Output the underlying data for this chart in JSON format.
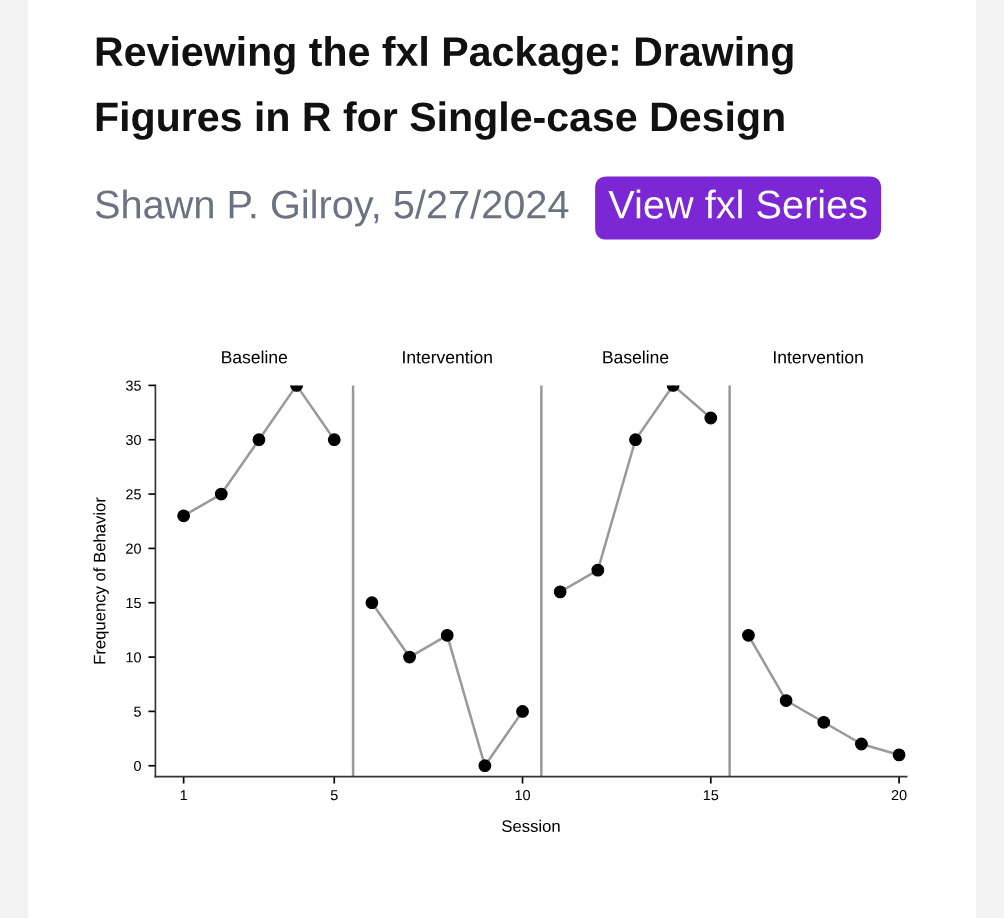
{
  "chart_data": {
    "type": "line",
    "title": "Reviewing the fxl Package: Drawing Figures in R for Single-case Design",
    "subtitle": "Shawn P. Gilroy, 5/27/2024",
    "xlabel": "Session",
    "ylabel": "Frequency of Behavior",
    "annotations": [
      "View fxl Series",
      "Baseline",
      "Intervention",
      "Baseline",
      "Intervention"
    ],
    "series": [
      {
        "color": "#000000",
        "x": [
          1,
          2,
          3,
          4,
          5
        ],
        "values": [
          23,
          25,
          30,
          35,
          30
        ]
      },
      {
        "color": "#000000",
        "x": [
          6,
          7,
          8,
          9,
          10
        ],
        "values": [
          15,
          10,
          12,
          0,
          5
        ]
      },
      {
        "color": "#000000",
        "x": [
          11,
          12,
          13,
          14,
          15
        ],
        "values": [
          16,
          18,
          30,
          35,
          32
        ]
      },
      {
        "color": "#000000",
        "x": [
          16,
          17,
          18,
          19,
          20
        ],
        "values": [
          12,
          6,
          4,
          2,
          1
        ]
      }
    ],
    "xlim": [
      0.25,
      20.2
    ],
    "xticks": [
      1,
      5,
      10,
      15,
      20
    ],
    "ylim": [
      -1,
      35
    ],
    "yticks": [
      0,
      5,
      10,
      15,
      20,
      25,
      30,
      35
    ],
    "ref_lines": [
      {
        "axis": "x",
        "value": 5.5,
        "color": "#999999"
      },
      {
        "axis": "x",
        "value": 10.5,
        "color": "#999999"
      },
      {
        "axis": "x",
        "value": 15.5,
        "color": "#999999"
      }
    ],
    "marker": "circle",
    "line_style": "solid"
  }
}
